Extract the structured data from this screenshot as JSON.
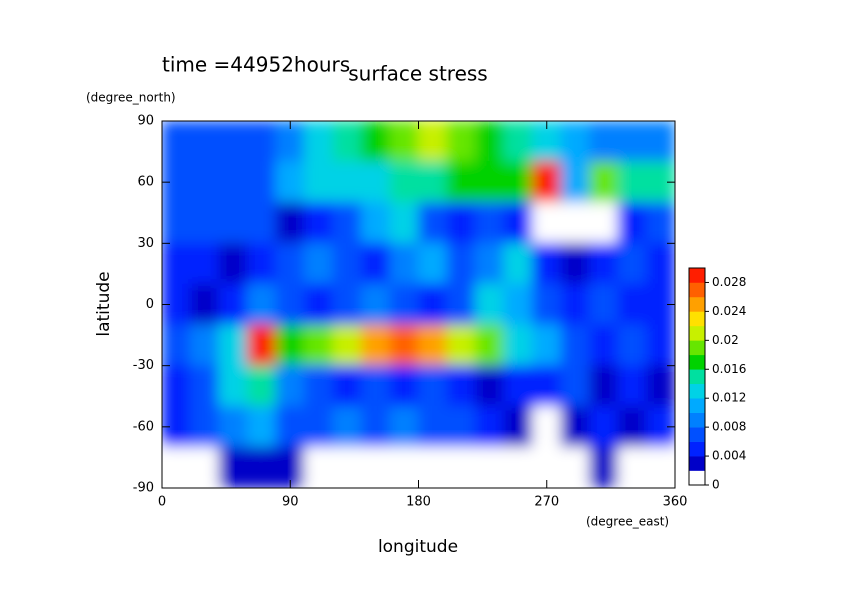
{
  "chart_data": {
    "type": "contour",
    "title": "surface stress",
    "subtitle": "time =44952hours",
    "x_label": "longitude",
    "x_unit": "(degree_east)",
    "y_label": "latitude",
    "y_unit": "(degree_north)",
    "xlim": [
      0,
      360
    ],
    "ylim": [
      -90,
      90
    ],
    "xticks": [
      0,
      90,
      180,
      270,
      360
    ],
    "yticks": [
      -90,
      -60,
      -30,
      0,
      30,
      60,
      90
    ],
    "lon": [
      10,
      30,
      50,
      70,
      90,
      110,
      130,
      150,
      170,
      190,
      210,
      230,
      250,
      270,
      290,
      310,
      330,
      350
    ],
    "lat": [
      80,
      60,
      40,
      20,
      0,
      -20,
      -40,
      -60,
      -80
    ],
    "z": [
      [
        0.006,
        0.006,
        0.006,
        0.006,
        0.008,
        0.012,
        0.014,
        0.016,
        0.018,
        0.02,
        0.018,
        0.016,
        0.014,
        0.012,
        0.01,
        0.008,
        0.008,
        0.008
      ],
      [
        0.006,
        0.006,
        0.006,
        0.006,
        0.01,
        0.012,
        0.012,
        0.012,
        0.014,
        0.014,
        0.016,
        0.016,
        0.016,
        0.028,
        0.01,
        0.018,
        0.014,
        0.014
      ],
      [
        0.006,
        0.006,
        0.006,
        0.006,
        0.003,
        0.004,
        0.006,
        0.01,
        0.012,
        0.006,
        0.004,
        0.006,
        0.004,
        0,
        0,
        0,
        0.004,
        0.006
      ],
      [
        0.004,
        0.004,
        0.002,
        0.004,
        0.006,
        0.008,
        0.006,
        0.004,
        0.008,
        0.01,
        0.006,
        0.008,
        0.012,
        0.004,
        0.002,
        0.004,
        0.006,
        0.004
      ],
      [
        0.004,
        0.002,
        0.004,
        0.008,
        0.006,
        0.004,
        0.006,
        0.008,
        0.006,
        0.004,
        0.006,
        0.012,
        0.01,
        0.006,
        0.004,
        0.006,
        0.004,
        0.004
      ],
      [
        0.006,
        0.008,
        0.012,
        0.028,
        0.016,
        0.018,
        0.02,
        0.024,
        0.026,
        0.024,
        0.02,
        0.018,
        0.012,
        0.01,
        0.006,
        0.004,
        0.006,
        0.004
      ],
      [
        0.004,
        0.006,
        0.012,
        0.014,
        0.008,
        0.006,
        0.004,
        0.006,
        0.004,
        0.006,
        0.004,
        0.002,
        0.004,
        0.004,
        0.006,
        0.002,
        0.004,
        0.002
      ],
      [
        0.004,
        0.006,
        0.008,
        0.01,
        0.006,
        0.006,
        0.008,
        0.006,
        0.008,
        0.006,
        0.006,
        0.004,
        0.002,
        0.001,
        0.002,
        0.004,
        0.002,
        0.004
      ],
      [
        0.001,
        0.001,
        0.002,
        0.002,
        0.002,
        0.001,
        0.001,
        0,
        0,
        0,
        0,
        0,
        0,
        0,
        0,
        0.002,
        0.001,
        0
      ]
    ],
    "zlim": [
      0,
      0.03
    ],
    "colorbar_ticks": [
      0,
      0.004,
      0.008,
      0.012,
      0.016,
      0.02,
      0.024,
      0.028
    ],
    "colormap": [
      "#ffffff",
      "#0000c8",
      "#0022ff",
      "#0050ff",
      "#0080ff",
      "#00aaff",
      "#00d2e6",
      "#00e0a0",
      "#00d200",
      "#66e600",
      "#c8f000",
      "#ffe000",
      "#ffa000",
      "#ff6000",
      "#ff1e00"
    ]
  }
}
